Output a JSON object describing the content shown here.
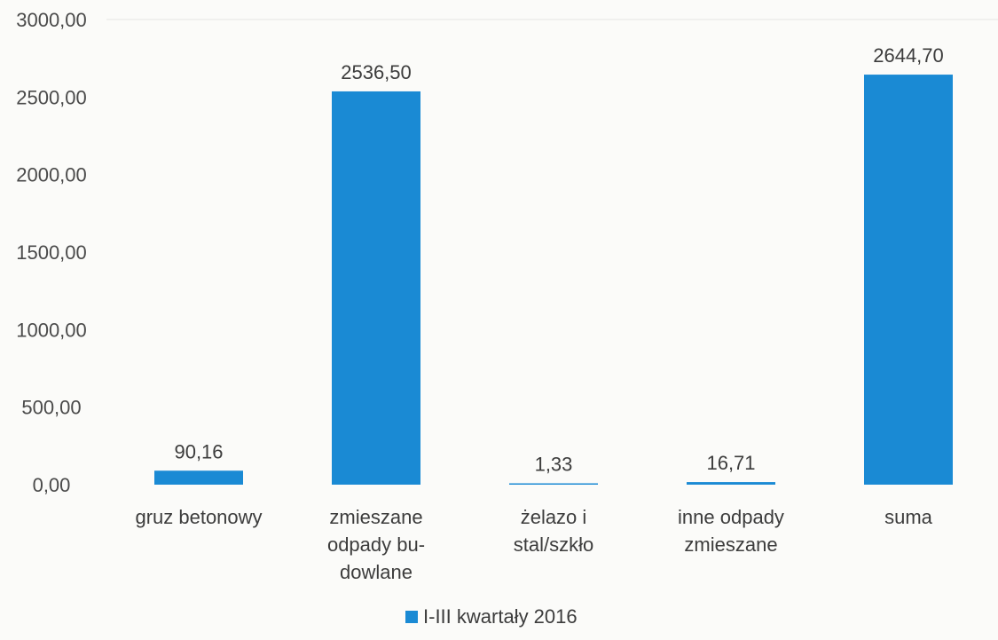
{
  "chart_data": {
    "type": "bar",
    "categories": [
      [
        "gruz betonowy"
      ],
      [
        "zmieszane",
        "odpady bu-",
        "dowlane"
      ],
      [
        "żelazo i",
        "stal/szkło"
      ],
      [
        "inne odpady",
        "zmieszane"
      ],
      [
        "suma"
      ]
    ],
    "series": [
      {
        "name": "I-III kwartały 2016",
        "values": [
          90.16,
          2536.5,
          1.33,
          16.71,
          2644.7
        ],
        "value_labels": [
          "90,16",
          "2536,50",
          "1,33",
          "16,71",
          "2644,70"
        ],
        "color": "#1a8ad4"
      }
    ],
    "yticks": [
      0,
      500,
      1000,
      1500,
      2000,
      2500,
      3000
    ],
    "ytick_labels": [
      "0,00",
      "500,00",
      "1000,00",
      "1500,00",
      "2000,00",
      "2500,00",
      "3000,00"
    ],
    "ylim": [
      0,
      3000
    ],
    "grid": false,
    "legend_position": "bottom-center",
    "title": "",
    "xlabel": "",
    "ylabel": ""
  }
}
